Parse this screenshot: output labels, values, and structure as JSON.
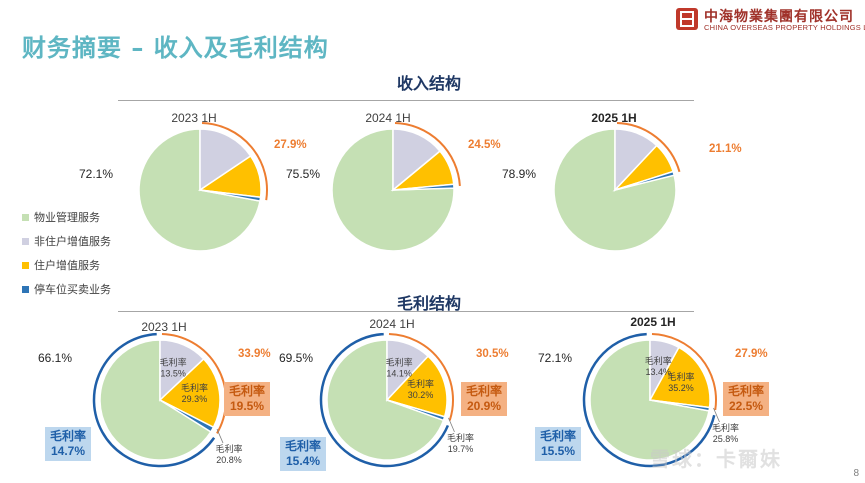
{
  "page": {
    "title": "财务摘要 – 收入及毛利结构",
    "page_number": "8",
    "watermark": "雪球：卡爾妹"
  },
  "logo": {
    "cn": "中海物業集團有限公司",
    "en": "CHINA OVERSEAS PROPERTY HOLDINGS LIMITED"
  },
  "sections": {
    "revenue_title": "收入结构",
    "gross_profit_title": "毛利结构"
  },
  "legend": [
    {
      "label": "物业管理服务",
      "color": "#c5e0b4"
    },
    {
      "label": "非住户增值服务",
      "color": "#d0d0e1"
    },
    {
      "label": "住户增值服务",
      "color": "#ffc000"
    },
    {
      "label": "停车位买卖业务",
      "color": "#2e75b6"
    }
  ],
  "colors": {
    "property_mgmt": "#c5e0b4",
    "non_resident": "#d0d0e1",
    "resident": "#ffc000",
    "parking": "#2e75b6",
    "orange_accent": "#ed7d31",
    "blue_accent": "#1f5fa8"
  },
  "chart_data": [
    {
      "type": "pie",
      "title": "2023 1H",
      "group": "收入结构",
      "categories": [
        "物业管理服务",
        "非住户增值服务",
        "住户增值服务",
        "停车位买卖业务"
      ],
      "values": [
        72.1,
        15.6,
        11.3,
        1.0
      ],
      "main_label": "72.1%",
      "value_added_total_label": "27.9%"
    },
    {
      "type": "pie",
      "title": "2024 1H",
      "group": "收入结构",
      "categories": [
        "物业管理服务",
        "非住户增值服务",
        "住户增值服务",
        "停车位买卖业务"
      ],
      "values": [
        75.5,
        14.0,
        9.5,
        1.0
      ],
      "main_label": "75.5%",
      "value_added_total_label": "24.5%"
    },
    {
      "type": "pie",
      "title": "2025 1H",
      "group": "收入结构",
      "categories": [
        "物业管理服务",
        "非住户增值服务",
        "住户增值服务",
        "停车位买卖业务"
      ],
      "values": [
        78.9,
        12.0,
        8.1,
        1.0
      ],
      "main_label": "78.9%",
      "value_added_total_label": "21.1%"
    },
    {
      "type": "pie",
      "title": "2023 1H",
      "group": "毛利结构",
      "categories": [
        "物业管理服务",
        "非住户增值服务",
        "住户增值服务",
        "停车位买卖业务"
      ],
      "values": [
        66.1,
        13.0,
        19.5,
        1.4
      ],
      "main_label": "66.1%",
      "value_added_total_label": "33.9%",
      "slice_labels": {
        "non_resident": [
          "毛利率",
          "13.5%"
        ],
        "resident": [
          "毛利率",
          "29.3%"
        ],
        "parking": [
          "毛利率",
          "20.8%"
        ]
      },
      "value_added_margin": [
        "毛利率",
        "19.5%"
      ],
      "property_margin": [
        "毛利率",
        "14.7%"
      ]
    },
    {
      "type": "pie",
      "title": "2024 1H",
      "group": "毛利结构",
      "categories": [
        "物业管理服务",
        "非住户增值服务",
        "住户增值服务",
        "停车位买卖业务"
      ],
      "values": [
        69.5,
        12.0,
        17.5,
        1.0
      ],
      "main_label": "69.5%",
      "value_added_total_label": "30.5%",
      "slice_labels": {
        "non_resident": [
          "毛利率",
          "14.1%"
        ],
        "resident": [
          "毛利率",
          "30.2%"
        ],
        "parking": [
          "毛利率",
          "19.7%"
        ]
      },
      "value_added_margin": [
        "毛利率",
        "20.9%"
      ],
      "property_margin": [
        "毛利率",
        "15.4%"
      ]
    },
    {
      "type": "pie",
      "title": "2025 1H",
      "group": "毛利结构",
      "categories": [
        "物业管理服务",
        "非住户增值服务",
        "住户增值服务",
        "停车位买卖业务"
      ],
      "values": [
        72.1,
        8.0,
        19.0,
        0.9
      ],
      "main_label": "72.1%",
      "value_added_total_label": "27.9%",
      "slice_labels": {
        "non_resident": [
          "毛利率",
          "13.4%"
        ],
        "resident": [
          "毛利率",
          "35.2%"
        ],
        "parking": [
          "毛利率",
          "25.8%"
        ]
      },
      "value_added_margin": [
        "毛利率",
        "22.5%"
      ],
      "property_margin": [
        "毛利率",
        "15.5%"
      ]
    }
  ]
}
